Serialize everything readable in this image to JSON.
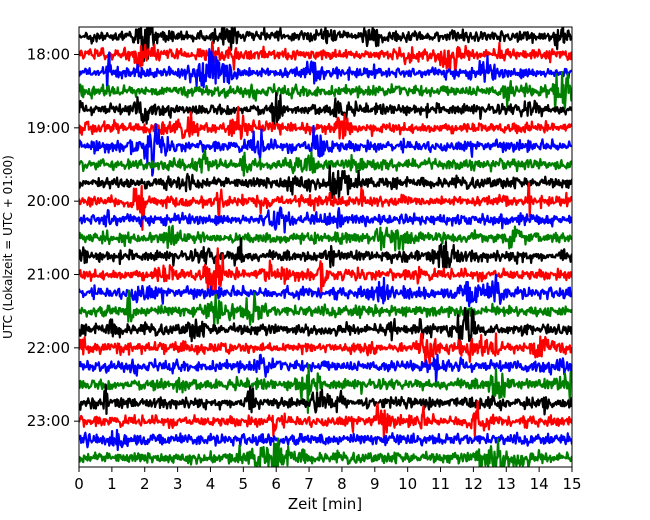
{
  "chart_data": {
    "type": "line",
    "subtype": "dayplot-helicorder",
    "title": "",
    "xlabel": "Zeit  [min]",
    "ylabel": "UTC (Lokalzeit = UTC + 01:00)",
    "xlim": [
      0,
      15
    ],
    "x_ticks": [
      "0",
      "1",
      "2",
      "3",
      "4",
      "5",
      "6",
      "7",
      "8",
      "9",
      "10",
      "11",
      "12",
      "13",
      "14",
      "15"
    ],
    "y_ticks": [
      "18:00",
      "19:00",
      "20:00",
      "21:00",
      "22:00",
      "23:00"
    ],
    "trace_interval_minutes": 15,
    "time_range": [
      "17:45",
      "24:00"
    ],
    "trace_count": 24,
    "trace_colors": [
      "#000000",
      "#ff0000",
      "#0000ff",
      "#008000"
    ],
    "grid": false,
    "legend": "none"
  }
}
